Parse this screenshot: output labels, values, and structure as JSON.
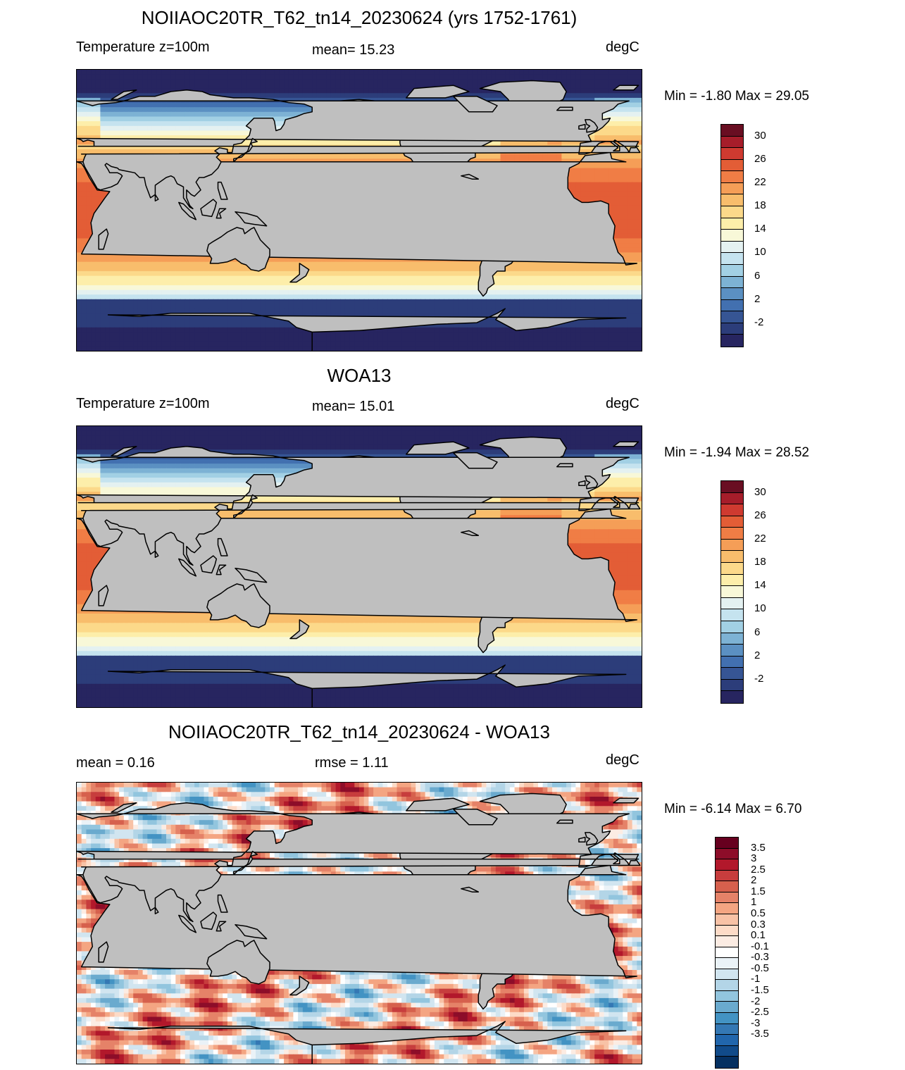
{
  "colors": {
    "land": "#bfbfbf",
    "coast": "#000000"
  },
  "panels": [
    {
      "title": "NOIIAOC20TR_T62_tn14_20230624 (yrs 1752-1761)",
      "left_label": "Temperature z=100m",
      "center_label": "mean=  15.23",
      "units": "degC",
      "minmax": "Min =  -1.80 Max =  29.05",
      "field": "model",
      "colorbar": {
        "colors": [
          "#690e22",
          "#a61d2a",
          "#cf3a30",
          "#e35d36",
          "#f07d45",
          "#f59e57",
          "#f8bd6c",
          "#fcd98a",
          "#fdeeaa",
          "#f8f8d8",
          "#e4f1f1",
          "#c5e3ef",
          "#a2d0e4",
          "#7db2d4",
          "#5b90c2",
          "#4270b0",
          "#365594",
          "#2c3d7a",
          "#272560"
        ],
        "labels": [
          "30",
          "26",
          "22",
          "18",
          "14",
          "10",
          "6",
          "2",
          "-2"
        ]
      }
    },
    {
      "title": "WOA13",
      "left_label": "Temperature z=100m",
      "center_label": "mean=  15.01",
      "units": "degC",
      "minmax": "Min =  -1.94 Max =  28.52",
      "field": "obs",
      "colorbar": {
        "colors": [
          "#690e22",
          "#a61d2a",
          "#cf3a30",
          "#e35d36",
          "#f07d45",
          "#f59e57",
          "#f8bd6c",
          "#fcd98a",
          "#fdeeaa",
          "#f8f8d8",
          "#e4f1f1",
          "#c5e3ef",
          "#a2d0e4",
          "#7db2d4",
          "#5b90c2",
          "#4270b0",
          "#365594",
          "#2c3d7a",
          "#272560"
        ],
        "labels": [
          "30",
          "26",
          "22",
          "18",
          "14",
          "10",
          "6",
          "2",
          "-2"
        ]
      }
    },
    {
      "title": "NOIIAOC20TR_T62_tn14_20230624 - WOA13",
      "left_label": "mean =   0.16",
      "center_label": "rmse =   1.11",
      "units": "degC",
      "minmax": "Min =  -6.14 Max =   6.70",
      "field": "diff",
      "colorbar": {
        "colors": [
          "#67001f",
          "#8d0d29",
          "#b2182b",
          "#c73d3d",
          "#d6604d",
          "#e58268",
          "#f4a582",
          "#f8c2a6",
          "#fddbc7",
          "#fcece3",
          "#ffffff",
          "#eaf2f7",
          "#d1e5f0",
          "#b3d5e7",
          "#92c5de",
          "#6aaace",
          "#4393c3",
          "#3478b4",
          "#2166ac",
          "#114b8a",
          "#053061"
        ],
        "labels": [
          "3.5",
          "3",
          "2.5",
          "2",
          "1.5",
          "1",
          "0.5",
          "0.3",
          "0.1",
          "-0.1",
          "-0.3",
          "-0.5",
          "-1",
          "-1.5",
          "-2",
          "-2.5",
          "-3",
          "-3.5"
        ]
      }
    }
  ]
}
